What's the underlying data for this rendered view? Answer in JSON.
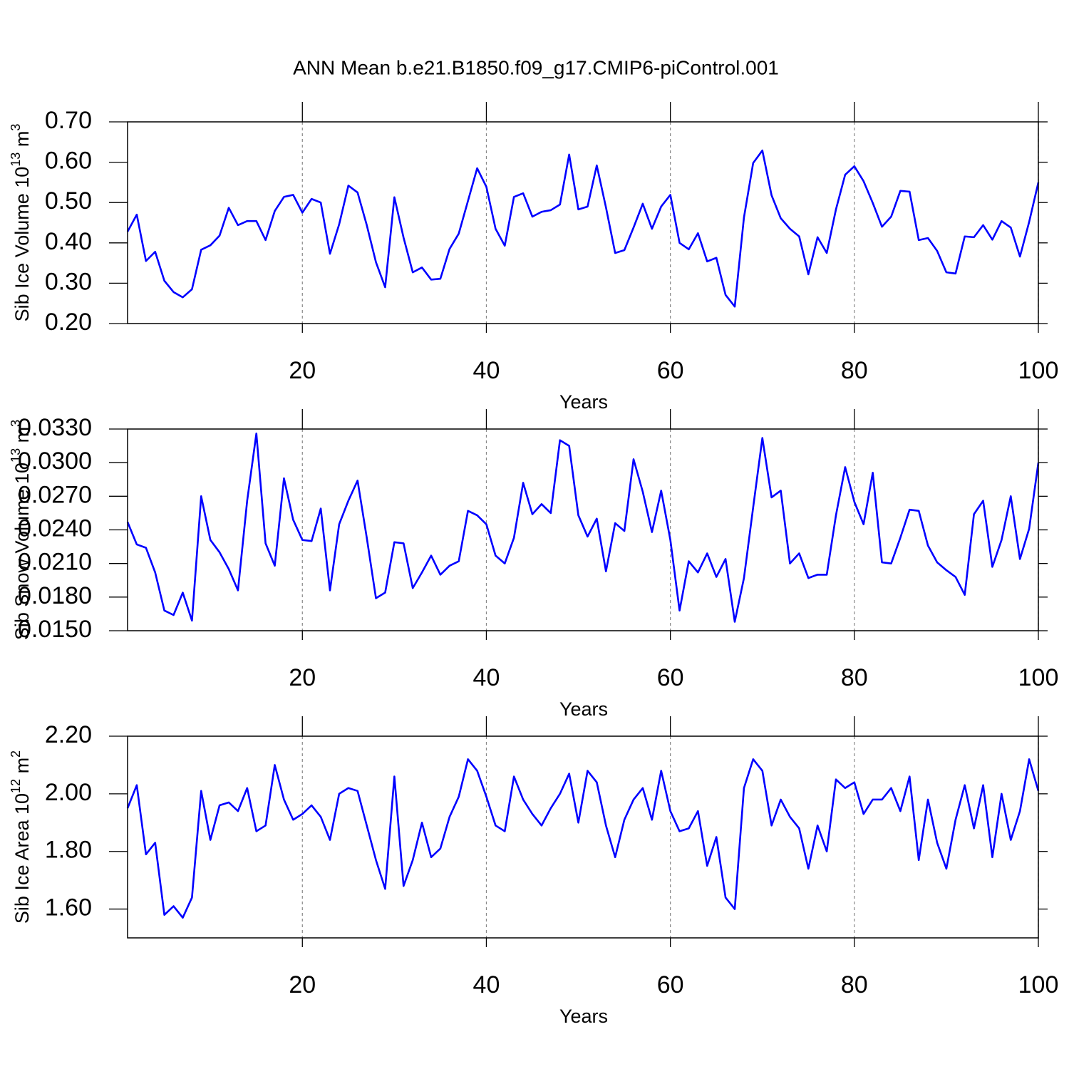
{
  "chart_data": [
    {
      "type": "line",
      "title": "ANN Mean b.e21.B1850.f09_g17.CMIP6-piControl.001",
      "ylabel": [
        "Sib Ice Volume 10",
        "13",
        " m",
        "3"
      ],
      "xlabel": "Years",
      "x": [
        1,
        2,
        3,
        4,
        5,
        6,
        7,
        8,
        9,
        10,
        11,
        12,
        13,
        14,
        15,
        16,
        17,
        18,
        19,
        20,
        21,
        22,
        23,
        24,
        25,
        26,
        27,
        28,
        29,
        30,
        31,
        32,
        33,
        34,
        35,
        36,
        37,
        38,
        39,
        40,
        41,
        42,
        43,
        44,
        45,
        46,
        47,
        48,
        49,
        50,
        51,
        52,
        53,
        54,
        55,
        56,
        57,
        58,
        59,
        60,
        61,
        62,
        63,
        64,
        65,
        66,
        67,
        68,
        69,
        70,
        71,
        72,
        73,
        74,
        75,
        76,
        77,
        78,
        79,
        80,
        81,
        82,
        83,
        84,
        85,
        86,
        87,
        88,
        89,
        90,
        91,
        92,
        93,
        94,
        95,
        96,
        97,
        98,
        99,
        100
      ],
      "series": [
        {
          "color": "#0000ff",
          "values": [
            0.428,
            0.47,
            0.355,
            0.378,
            0.306,
            0.278,
            0.265,
            0.285,
            0.383,
            0.394,
            0.418,
            0.487,
            0.444,
            0.454,
            0.454,
            0.407,
            0.479,
            0.514,
            0.519,
            0.475,
            0.509,
            0.5,
            0.373,
            0.446,
            0.542,
            0.525,
            0.444,
            0.352,
            0.29,
            0.513,
            0.413,
            0.327,
            0.339,
            0.309,
            0.311,
            0.385,
            0.423,
            0.504,
            0.585,
            0.539,
            0.435,
            0.393,
            0.514,
            0.523,
            0.465,
            0.477,
            0.481,
            0.495,
            0.619,
            0.483,
            0.49,
            0.592,
            0.488,
            0.375,
            0.382,
            0.438,
            0.497,
            0.435,
            0.49,
            0.519,
            0.4,
            0.384,
            0.424,
            0.354,
            0.363,
            0.271,
            0.242,
            0.463,
            0.598,
            0.629,
            0.518,
            0.461,
            0.435,
            0.416,
            0.322,
            0.414,
            0.375,
            0.483,
            0.569,
            0.59,
            0.553,
            0.499,
            0.44,
            0.465,
            0.529,
            0.527,
            0.407,
            0.412,
            0.38,
            0.327,
            0.324,
            0.416,
            0.414,
            0.444,
            0.408,
            0.454,
            0.438,
            0.366,
            0.452,
            0.55
          ]
        }
      ],
      "xlim": [
        1,
        100
      ],
      "xticks": [
        20,
        40,
        60,
        80,
        100
      ],
      "ylim": [
        0.2,
        0.7
      ],
      "yticks": [
        {
          "value": 0.2,
          "label": "0.20"
        },
        {
          "value": 0.3,
          "label": "0.30"
        },
        {
          "value": 0.4,
          "label": "0.40"
        },
        {
          "value": 0.5,
          "label": "0.50"
        },
        {
          "value": 0.6,
          "label": "0.60"
        },
        {
          "value": 0.7,
          "label": "0.70"
        }
      ],
      "grid": "x"
    },
    {
      "type": "line",
      "ylabel": [
        "Sib Snow Volume 10",
        "13",
        " m",
        "3"
      ],
      "xlabel": "Years",
      "x": [
        1,
        2,
        3,
        4,
        5,
        6,
        7,
        8,
        9,
        10,
        11,
        12,
        13,
        14,
        15,
        16,
        17,
        18,
        19,
        20,
        21,
        22,
        23,
        24,
        25,
        26,
        27,
        28,
        29,
        30,
        31,
        32,
        33,
        34,
        35,
        36,
        37,
        38,
        39,
        40,
        41,
        42,
        43,
        44,
        45,
        46,
        47,
        48,
        49,
        50,
        51,
        52,
        53,
        54,
        55,
        56,
        57,
        58,
        59,
        60,
        61,
        62,
        63,
        64,
        65,
        66,
        67,
        68,
        69,
        70,
        71,
        72,
        73,
        74,
        75,
        76,
        77,
        78,
        79,
        80,
        81,
        82,
        83,
        84,
        85,
        86,
        87,
        88,
        89,
        90,
        91,
        92,
        93,
        94,
        95,
        96,
        97,
        98,
        99,
        100
      ],
      "series": [
        {
          "color": "#0000ff",
          "values": [
            0.0247,
            0.0227,
            0.0224,
            0.0202,
            0.0168,
            0.0164,
            0.0184,
            0.0159,
            0.027,
            0.0231,
            0.022,
            0.0205,
            0.0186,
            0.0266,
            0.0326,
            0.0228,
            0.0208,
            0.0286,
            0.0249,
            0.0231,
            0.023,
            0.0259,
            0.0186,
            0.0245,
            0.0266,
            0.0284,
            0.0233,
            0.0179,
            0.0184,
            0.0229,
            0.0228,
            0.0188,
            0.0202,
            0.0217,
            0.02,
            0.0208,
            0.0212,
            0.0257,
            0.0253,
            0.0245,
            0.0217,
            0.021,
            0.0233,
            0.0282,
            0.0254,
            0.0263,
            0.0255,
            0.032,
            0.0315,
            0.0253,
            0.0234,
            0.025,
            0.0203,
            0.0246,
            0.0239,
            0.0303,
            0.0274,
            0.0238,
            0.0275,
            0.0231,
            0.0168,
            0.0212,
            0.0202,
            0.0219,
            0.0198,
            0.0214,
            0.0158,
            0.0197,
            0.026,
            0.0322,
            0.0269,
            0.0275,
            0.021,
            0.0219,
            0.0197,
            0.02,
            0.02,
            0.0253,
            0.0296,
            0.0265,
            0.0245,
            0.0291,
            0.0211,
            0.021,
            0.0233,
            0.0258,
            0.0257,
            0.0226,
            0.0211,
            0.0204,
            0.0198,
            0.0182,
            0.0254,
            0.0266,
            0.0207,
            0.0231,
            0.027,
            0.0214,
            0.0241,
            0.03
          ]
        }
      ],
      "xlim": [
        1,
        100
      ],
      "xticks": [
        20,
        40,
        60,
        80,
        100
      ],
      "ylim": [
        0.015,
        0.033
      ],
      "yticks": [
        {
          "value": 0.015,
          "label": "0.0150"
        },
        {
          "value": 0.018,
          "label": "0.0180"
        },
        {
          "value": 0.021,
          "label": "0.0210"
        },
        {
          "value": 0.024,
          "label": "0.0240"
        },
        {
          "value": 0.027,
          "label": "0.0270"
        },
        {
          "value": 0.03,
          "label": "0.0300"
        },
        {
          "value": 0.033,
          "label": "0.0330"
        }
      ],
      "grid": "x"
    },
    {
      "type": "line",
      "ylabel": [
        "Sib Ice Area 10",
        "12",
        " m",
        "2"
      ],
      "xlabel": "Years",
      "x": [
        1,
        2,
        3,
        4,
        5,
        6,
        7,
        8,
        9,
        10,
        11,
        12,
        13,
        14,
        15,
        16,
        17,
        18,
        19,
        20,
        21,
        22,
        23,
        24,
        25,
        26,
        27,
        28,
        29,
        30,
        31,
        32,
        33,
        34,
        35,
        36,
        37,
        38,
        39,
        40,
        41,
        42,
        43,
        44,
        45,
        46,
        47,
        48,
        49,
        50,
        51,
        52,
        53,
        54,
        55,
        56,
        57,
        58,
        59,
        60,
        61,
        62,
        63,
        64,
        65,
        66,
        67,
        68,
        69,
        70,
        71,
        72,
        73,
        74,
        75,
        76,
        77,
        78,
        79,
        80,
        81,
        82,
        83,
        84,
        85,
        86,
        87,
        88,
        89,
        90,
        91,
        92,
        93,
        94,
        95,
        96,
        97,
        98,
        99,
        100
      ],
      "series": [
        {
          "color": "#0000ff",
          "values": [
            1.95,
            2.03,
            1.79,
            1.83,
            1.58,
            1.61,
            1.57,
            1.64,
            2.01,
            1.84,
            1.96,
            1.97,
            1.94,
            2.02,
            1.87,
            1.89,
            2.1,
            1.98,
            1.91,
            1.93,
            1.96,
            1.92,
            1.84,
            2.0,
            2.02,
            2.01,
            1.89,
            1.77,
            1.67,
            2.06,
            1.68,
            1.77,
            1.9,
            1.78,
            1.81,
            1.92,
            1.99,
            2.12,
            2.08,
            1.99,
            1.89,
            1.87,
            2.06,
            1.98,
            1.93,
            1.89,
            1.95,
            2.0,
            2.07,
            1.9,
            2.08,
            2.04,
            1.89,
            1.78,
            1.91,
            1.98,
            2.02,
            1.91,
            2.08,
            1.94,
            1.87,
            1.88,
            1.94,
            1.75,
            1.85,
            1.64,
            1.6,
            2.02,
            2.12,
            2.08,
            1.89,
            1.98,
            1.92,
            1.88,
            1.74,
            1.89,
            1.8,
            2.05,
            2.02,
            2.04,
            1.93,
            1.98,
            1.98,
            2.02,
            1.94,
            2.06,
            1.77,
            1.98,
            1.83,
            1.74,
            1.91,
            2.03,
            1.88,
            2.03,
            1.78,
            2.0,
            1.84,
            1.94,
            2.12,
            2.01
          ]
        }
      ],
      "xlim": [
        1,
        100
      ],
      "xticks": [
        20,
        40,
        60,
        80,
        100
      ],
      "ylim": [
        1.5,
        2.2
      ],
      "yticks": [
        {
          "value": 1.6,
          "label": "1.60"
        },
        {
          "value": 1.8,
          "label": "1.80"
        },
        {
          "value": 2.0,
          "label": "2.00"
        },
        {
          "value": 2.2,
          "label": "2.20"
        }
      ],
      "grid": "x"
    }
  ]
}
